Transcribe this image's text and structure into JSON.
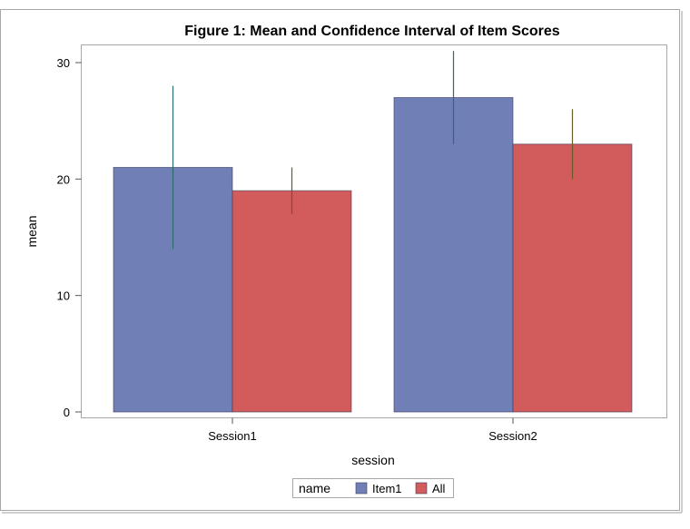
{
  "chart_data": {
    "type": "bar",
    "title": "Figure 1: Mean and Confidence Interval of Item Scores",
    "xlabel": "session",
    "ylabel": "mean",
    "categories": [
      "Session1",
      "Session2"
    ],
    "ylim": [
      0,
      32
    ],
    "yticks": [
      0,
      10,
      20,
      30
    ],
    "grid": false,
    "legend": {
      "title": "name",
      "position": "bottom-center"
    },
    "series": [
      {
        "name": "Item1",
        "color": "#7080b6",
        "values": [
          21,
          27
        ],
        "ci_low": [
          14,
          23
        ],
        "ci_high": [
          28,
          31
        ],
        "error_color": "#2e6b6b"
      },
      {
        "name": "All",
        "color": "#d25b5b",
        "values": [
          19,
          23
        ],
        "ci_low": [
          17,
          20
        ],
        "ci_high": [
          21,
          26
        ],
        "error_color": "#6b5a2a"
      }
    ]
  }
}
